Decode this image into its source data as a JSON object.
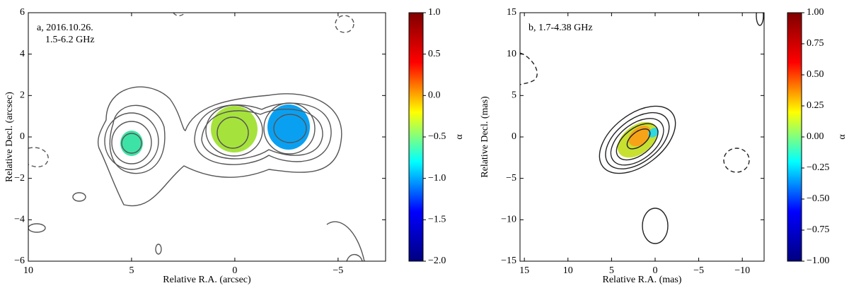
{
  "chart_data": [
    {
      "type": "spectral-index-map",
      "annotations": [
        "a, 2016.10.26.",
        "1.5-6.2 GHz"
      ],
      "xlabel": "Relative R.A. (arcsec)",
      "ylabel": "Relative Decl. (arcsec)",
      "xlim": [
        10,
        -7.3
      ],
      "ylim": [
        -6,
        6
      ],
      "xticks": [
        10,
        5,
        0,
        {
          "value": -5,
          "label": "−5"
        }
      ],
      "yticks": [
        {
          "value": -6,
          "label": "−6"
        },
        {
          "value": -4,
          "label": "−4"
        },
        {
          "value": -2,
          "label": "−2"
        },
        0,
        2,
        4,
        6
      ],
      "colorbar": {
        "label": "α",
        "lim": [
          -2.0,
          1.0
        ],
        "colors": [
          "#00007f",
          "#0000ff",
          "#00ffff",
          "#ffff00",
          "#ff0000",
          "#7f0000"
        ],
        "ticks": [
          {
            "value": 1.0,
            "label": "1.0"
          },
          {
            "value": 0.5,
            "label": "0.5"
          },
          {
            "value": 0.0,
            "label": "0.0"
          },
          {
            "value": -0.5,
            "label": "−0.5"
          },
          {
            "value": -1.0,
            "label": "−1.0"
          },
          {
            "value": -1.5,
            "label": "−1.5"
          },
          {
            "value": -2.0,
            "label": "−2.0"
          }
        ]
      }
    },
    {
      "type": "spectral-index-map",
      "annotations": [
        "b, 1.7-4.38 GHz"
      ],
      "xlabel": "Relative R.A. (mas)",
      "ylabel": "Relative Decl. (mas)",
      "xlim": [
        15.5,
        -12.5
      ],
      "ylim": [
        -15,
        15
      ],
      "xticks": [
        15,
        10,
        5,
        0,
        {
          "value": -5,
          "label": "−5"
        },
        {
          "value": -10,
          "label": "−10"
        }
      ],
      "yticks": [
        {
          "value": -15,
          "label": "−15"
        },
        {
          "value": -10,
          "label": "−10"
        },
        {
          "value": -5,
          "label": "−5"
        },
        0,
        5,
        10,
        15
      ],
      "colorbar": {
        "label": "α",
        "lim": [
          -1.0,
          1.0
        ],
        "colors": [
          "#00007f",
          "#0000ff",
          "#00ffff",
          "#ffff00",
          "#ff0000",
          "#7f0000"
        ],
        "ticks": [
          {
            "value": 1.0,
            "label": "1.00"
          },
          {
            "value": 0.75,
            "label": "0.75"
          },
          {
            "value": 0.5,
            "label": "0.50"
          },
          {
            "value": 0.25,
            "label": "0.25"
          },
          {
            "value": 0.0,
            "label": "0.00"
          },
          {
            "value": -0.25,
            "label": "−0.25"
          },
          {
            "value": -0.5,
            "label": "−0.50"
          },
          {
            "value": -0.75,
            "label": "−0.75"
          },
          {
            "value": -1.0,
            "label": "−1.00"
          }
        ]
      }
    }
  ]
}
